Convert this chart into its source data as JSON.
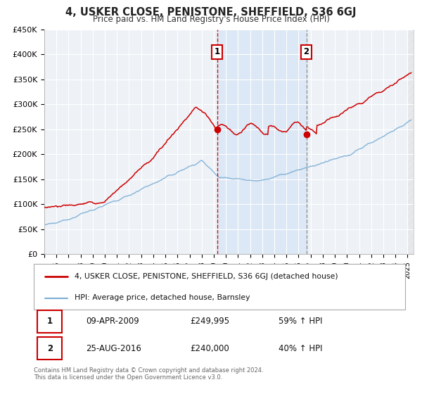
{
  "title": "4, USKER CLOSE, PENISTONE, SHEFFIELD, S36 6GJ",
  "subtitle": "Price paid vs. HM Land Registry's House Price Index (HPI)",
  "ylim": [
    0,
    450000
  ],
  "yticks": [
    0,
    50000,
    100000,
    150000,
    200000,
    250000,
    300000,
    350000,
    400000,
    450000
  ],
  "ytick_labels": [
    "£0",
    "£50K",
    "£100K",
    "£150K",
    "£200K",
    "£250K",
    "£300K",
    "£350K",
    "£400K",
    "£450K"
  ],
  "xlim_start": 1995.0,
  "xlim_end": 2025.5,
  "xticks": [
    1995,
    1996,
    1997,
    1998,
    1999,
    2000,
    2001,
    2002,
    2003,
    2004,
    2005,
    2006,
    2007,
    2008,
    2009,
    2010,
    2011,
    2012,
    2013,
    2014,
    2015,
    2016,
    2017,
    2018,
    2019,
    2020,
    2021,
    2022,
    2023,
    2024,
    2025
  ],
  "background_color": "#ffffff",
  "plot_bg_color": "#eef2f7",
  "grid_color": "#ffffff",
  "sale1_x": 2009.27,
  "sale1_y": 249995,
  "sale2_x": 2016.65,
  "sale2_y": 240000,
  "sale1_date": "09-APR-2009",
  "sale1_price": "£249,995",
  "sale1_hpi": "59% ↑ HPI",
  "sale2_date": "25-AUG-2016",
  "sale2_price": "£240,000",
  "sale2_hpi": "40% ↑ HPI",
  "line1_color": "#cc0000",
  "line2_color": "#7aadd4",
  "highlight_bg": "#dce8f5",
  "hatch_color": "#cccccc",
  "legend1_label": "4, USKER CLOSE, PENISTONE, SHEFFIELD, S36 6GJ (detached house)",
  "legend2_label": "HPI: Average price, detached house, Barnsley",
  "footer": "Contains HM Land Registry data © Crown copyright and database right 2024.\nThis data is licensed under the Open Government Licence v3.0."
}
